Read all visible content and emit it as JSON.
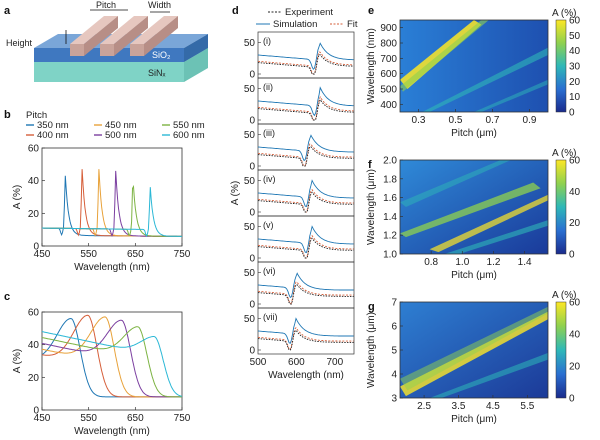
{
  "panel_a": {
    "letter": "a",
    "labels": {
      "pitch": "Pitch",
      "width": "Width",
      "height": "Height",
      "sio2": "SiO₂",
      "sinx": "SiNₓ"
    }
  },
  "panel_b": {
    "letter": "b",
    "legend_title": "Pitch",
    "legend": [
      "350 nm",
      "450 nm",
      "550 nm",
      "400 nm",
      "500 nm",
      "600 nm"
    ],
    "legend_colors": [
      "#1f77b4",
      "#e8a23a",
      "#7cb342",
      "#d65f3a",
      "#7b3fa0",
      "#2cb8d6"
    ],
    "chart_data": {
      "type": "line",
      "xlabel": "Wavelength (nm)",
      "ylabel": "A (%)",
      "xlim": [
        450,
        750
      ],
      "ylim": [
        0,
        60
      ],
      "xticks": [
        "450",
        "550",
        "650",
        "750"
      ],
      "yticks": [
        "0",
        "20",
        "40",
        "60"
      ],
      "series": [
        {
          "name": "350 nm",
          "peak_x": 500,
          "peak_y": 43
        },
        {
          "name": "400 nm",
          "peak_x": 536,
          "peak_y": 47
        },
        {
          "name": "450 nm",
          "peak_x": 572,
          "peak_y": 47
        },
        {
          "name": "500 nm",
          "peak_x": 608,
          "peak_y": 46
        },
        {
          "name": "550 nm",
          "peak_x": 645,
          "peak_y": 41
        },
        {
          "name": "600 nm",
          "peak_x": 682,
          "peak_y": 36
        }
      ]
    }
  },
  "panel_c": {
    "letter": "c",
    "chart_data": {
      "type": "line",
      "xlabel": "Wavelength (nm)",
      "ylabel": "A (%)",
      "xlim": [
        450,
        750
      ],
      "ylim": [
        0,
        60
      ],
      "xticks": [
        "450",
        "550",
        "650",
        "750"
      ],
      "yticks": [
        "0",
        "20",
        "40",
        "60"
      ],
      "series": [
        {
          "name": "350 nm",
          "peak_x": 512,
          "peak_y": 56
        },
        {
          "name": "400 nm",
          "peak_x": 548,
          "peak_y": 58
        },
        {
          "name": "450 nm",
          "peak_x": 585,
          "peak_y": 57
        },
        {
          "name": "500 nm",
          "peak_x": 620,
          "peak_y": 55
        },
        {
          "name": "550 nm",
          "peak_x": 655,
          "peak_y": 51
        },
        {
          "name": "600 nm",
          "peak_x": 690,
          "peak_y": 45
        }
      ]
    }
  },
  "panel_d": {
    "letter": "d",
    "legend": [
      "Experiment",
      "Simulation",
      "Fit"
    ],
    "legend_colors": [
      "#222222",
      "#1f77b4",
      "#d65f3a"
    ],
    "roman": [
      "(i)",
      "(ii)",
      "(iii)",
      "(iv)",
      "(v)",
      "(vi)",
      "(vii)"
    ],
    "chart_data": {
      "type": "line",
      "xlabel": "Wavelength (nm)",
      "ylabel": "A (%)",
      "xlim": [
        500,
        750
      ],
      "xticks": [
        "500",
        "600",
        "700"
      ],
      "yticks": [
        "0",
        "50"
      ],
      "peaks": [
        660,
        662,
        636,
        640,
        640,
        600,
        598
      ]
    }
  },
  "panel_e": {
    "letter": "e",
    "chart_data": {
      "type": "heatmap",
      "xlabel": "Pitch (μm)",
      "ylabel": "Wavelength (nm)",
      "xlim": [
        0.2,
        1.0
      ],
      "ylim": [
        350,
        950
      ],
      "xticks": [
        "0.3",
        "0.5",
        "0.7",
        "0.9"
      ],
      "yticks": [
        "400",
        "500",
        "600",
        "700",
        "800",
        "900"
      ],
      "colorbar_label": "A (%)",
      "colorbar_ticks": [
        "0",
        "10",
        "20",
        "30",
        "40",
        "50",
        "60"
      ],
      "zlim": [
        0,
        60
      ]
    }
  },
  "panel_f": {
    "letter": "f",
    "chart_data": {
      "type": "heatmap",
      "xlabel": "Pitch (μm)",
      "ylabel": "Wavelength (μm)",
      "xlim": [
        0.6,
        1.55
      ],
      "ylim": [
        1.0,
        2.0
      ],
      "xticks": [
        "0.8",
        "1.0",
        "1.2",
        "1.4"
      ],
      "yticks": [
        "1.0",
        "1.2",
        "1.4",
        "1.6",
        "1.8",
        "2.0"
      ],
      "colorbar_label": "A (%)",
      "colorbar_ticks": [
        "0",
        "20",
        "40",
        "60"
      ],
      "zlim": [
        0,
        60
      ]
    }
  },
  "panel_g": {
    "letter": "g",
    "chart_data": {
      "type": "heatmap",
      "xlabel": "Pitch (μm)",
      "ylabel": "Wavelength (μm)",
      "xlim": [
        1.8,
        6.1
      ],
      "ylim": [
        3,
        7
      ],
      "xticks": [
        "2.5",
        "3.5",
        "4.5",
        "5.5"
      ],
      "yticks": [
        "3",
        "4",
        "5",
        "6",
        "7"
      ],
      "colorbar_label": "A (%)",
      "colorbar_ticks": [
        "0",
        "20",
        "40",
        "60"
      ],
      "zlim": [
        0,
        60
      ]
    }
  }
}
